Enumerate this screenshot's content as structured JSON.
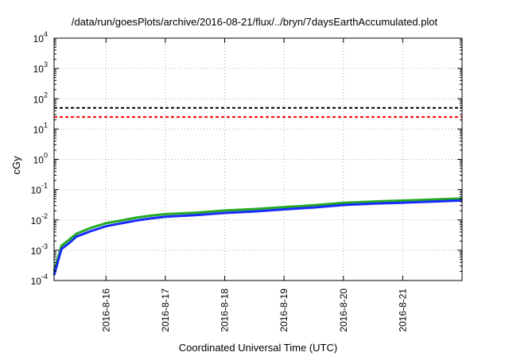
{
  "chart_data": {
    "type": "line",
    "title": "/data/run/goesPlots/archive/2016-08-21/flux/../bryn/7daysEarthAccumulated.plot",
    "xlabel": "Coordinated Universal Time (UTC)",
    "ylabel": "cGy",
    "y_scale": "log",
    "ylim": [
      0.0001,
      10000
    ],
    "y_ticks": [
      {
        "base": "10",
        "exp": "-4",
        "value": 0.0001
      },
      {
        "base": "10",
        "exp": "-3",
        "value": 0.001
      },
      {
        "base": "10",
        "exp": "-2",
        "value": 0.01
      },
      {
        "base": "10",
        "exp": "-1",
        "value": 0.1
      },
      {
        "base": "10",
        "exp": "0",
        "value": 1
      },
      {
        "base": "10",
        "exp": "1",
        "value": 10
      },
      {
        "base": "10",
        "exp": "2",
        "value": 100
      },
      {
        "base": "10",
        "exp": "3",
        "value": 1000
      },
      {
        "base": "10",
        "exp": "4",
        "value": 10000
      }
    ],
    "xlim": [
      "2016-08-15 03:00",
      "2016-08-22 00:00"
    ],
    "x_ticks": [
      "2016-8-16",
      "2016-8-17",
      "2016-8-18",
      "2016-8-19",
      "2016-8-20",
      "2016-8-21"
    ],
    "grid": true,
    "series": [
      {
        "color": "#22aa22",
        "style": "solid",
        "x": [
          "2016-08-15 03:00",
          "2016-08-15 06:00",
          "2016-08-15 09:00",
          "2016-08-15 12:00",
          "2016-08-15 18:00",
          "2016-08-16 00:00",
          "2016-08-16 06:00",
          "2016-08-16 12:00",
          "2016-08-16 18:00",
          "2016-08-17 00:00",
          "2016-08-17 12:00",
          "2016-08-18 00:00",
          "2016-08-18 12:00",
          "2016-08-19 00:00",
          "2016-08-19 12:00",
          "2016-08-20 00:00",
          "2016-08-20 12:00",
          "2016-08-21 00:00",
          "2016-08-21 12:00",
          "2016-08-22 00:00"
        ],
        "values": [
          0.0002,
          0.0014,
          0.0022,
          0.0035,
          0.0055,
          0.0078,
          0.0095,
          0.0118,
          0.0138,
          0.0155,
          0.0172,
          0.0205,
          0.0228,
          0.0265,
          0.0305,
          0.0365,
          0.0405,
          0.0435,
          0.047,
          0.051
        ]
      },
      {
        "color": "#1a2cff",
        "style": "solid",
        "x": [
          "2016-08-15 03:00",
          "2016-08-15 06:00",
          "2016-08-15 09:00",
          "2016-08-15 12:00",
          "2016-08-15 18:00",
          "2016-08-16 00:00",
          "2016-08-16 06:00",
          "2016-08-16 12:00",
          "2016-08-16 18:00",
          "2016-08-17 00:00",
          "2016-08-17 12:00",
          "2016-08-18 00:00",
          "2016-08-18 12:00",
          "2016-08-19 00:00",
          "2016-08-19 12:00",
          "2016-08-20 00:00",
          "2016-08-20 12:00",
          "2016-08-21 00:00",
          "2016-08-21 12:00",
          "2016-08-22 00:00"
        ],
        "values": [
          0.00015,
          0.0011,
          0.0017,
          0.0028,
          0.0043,
          0.0062,
          0.0077,
          0.0095,
          0.0112,
          0.0128,
          0.0143,
          0.017,
          0.019,
          0.0222,
          0.0258,
          0.031,
          0.0345,
          0.037,
          0.04,
          0.044
        ]
      },
      {
        "color": "#000000",
        "style": "dashed",
        "x": [
          "2016-08-15 03:00",
          "2016-08-22 00:00"
        ],
        "values": [
          50,
          50
        ]
      },
      {
        "color": "#ff0000",
        "style": "dashed",
        "x": [
          "2016-08-15 03:00",
          "2016-08-22 00:00"
        ],
        "values": [
          25,
          25
        ]
      }
    ]
  }
}
